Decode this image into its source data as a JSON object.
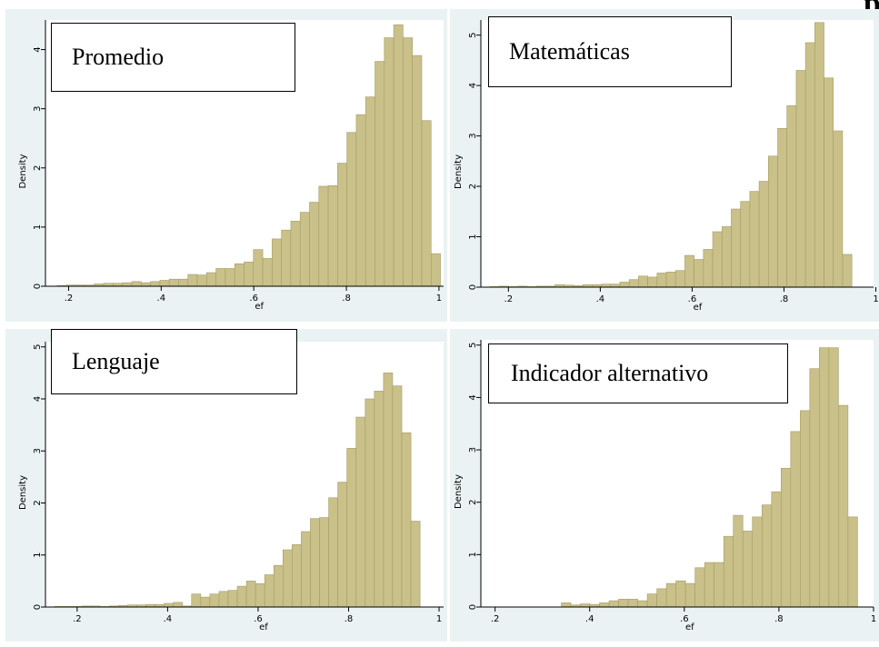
{
  "page": {
    "corner_glyph": "p"
  },
  "chart_data": [
    {
      "type": "bar",
      "title": "Promedio",
      "xlabel": "ef",
      "ylabel": "Density",
      "xlim": [
        0.15,
        1.01
      ],
      "ylim": [
        0,
        4.5
      ],
      "xticks": [
        0.2,
        0.4,
        0.6,
        0.8,
        1
      ],
      "xtick_labels": [
        ".2",
        ".4",
        ".6",
        ".8",
        "1"
      ],
      "yticks": [
        0,
        1,
        2,
        3,
        4
      ],
      "ytick_labels": [
        "0",
        "1",
        "2",
        "3",
        "4"
      ],
      "bin_start": 0.175,
      "bin_width": 0.0202,
      "values": [
        0.01,
        0.02,
        0.02,
        0.02,
        0.04,
        0.05,
        0.05,
        0.06,
        0.08,
        0.06,
        0.08,
        0.1,
        0.12,
        0.12,
        0.2,
        0.19,
        0.23,
        0.3,
        0.3,
        0.38,
        0.41,
        0.62,
        0.47,
        0.8,
        0.95,
        1.1,
        1.25,
        1.42,
        1.69,
        1.7,
        2.08,
        2.6,
        2.9,
        3.2,
        3.8,
        4.2,
        4.42,
        4.2,
        3.9,
        2.8,
        0.55
      ],
      "bar_color": "#c9c08a"
    },
    {
      "type": "bar",
      "title": "Matemáticas",
      "xlabel": "ef",
      "ylabel": "Density",
      "xlim": [
        0.14,
        0.995
      ],
      "ylim": [
        0,
        5.3
      ],
      "xticks": [
        0.2,
        0.4,
        0.6,
        0.8,
        1
      ],
      "xtick_labels": [
        ".2",
        ".4",
        ".6",
        ".8",
        "1"
      ],
      "yticks": [
        0,
        1,
        2,
        3,
        4,
        5
      ],
      "ytick_labels": [
        "0",
        "1",
        "2",
        "3",
        "4",
        "5"
      ],
      "bin_start": 0.16,
      "bin_width": 0.0202,
      "values": [
        0.01,
        0.02,
        0.01,
        0.02,
        0.01,
        0.02,
        0.02,
        0.05,
        0.04,
        0.03,
        0.05,
        0.05,
        0.06,
        0.06,
        0.1,
        0.15,
        0.22,
        0.2,
        0.28,
        0.3,
        0.33,
        0.63,
        0.55,
        0.75,
        1.1,
        1.2,
        1.55,
        1.7,
        1.9,
        2.1,
        2.6,
        3.15,
        3.6,
        4.3,
        4.85,
        5.25,
        4.15,
        3.1,
        0.65
      ],
      "bar_color": "#c9c08a"
    },
    {
      "type": "bar",
      "title": "Lenguaje",
      "xlabel": "ef",
      "ylabel": "Density",
      "xlim": [
        0.13,
        1.01
      ],
      "ylim": [
        0,
        5.1
      ],
      "xticks": [
        0.2,
        0.4,
        0.6,
        0.8,
        1
      ],
      "xtick_labels": [
        ".2",
        ".4",
        ".6",
        ".8",
        "1"
      ],
      "yticks": [
        0,
        1,
        2,
        3,
        4,
        5
      ],
      "ytick_labels": [
        "0",
        "1",
        "2",
        "3",
        "4",
        "5"
      ],
      "bin_start": 0.15,
      "bin_width": 0.0202,
      "values": [
        0.01,
        0.01,
        0.01,
        0.02,
        0.02,
        0.01,
        0.02,
        0.03,
        0.04,
        0.04,
        0.05,
        0.05,
        0.07,
        0.09,
        0.02,
        0.25,
        0.19,
        0.25,
        0.3,
        0.32,
        0.4,
        0.5,
        0.45,
        0.62,
        0.8,
        1.1,
        1.2,
        1.45,
        1.7,
        1.72,
        2.1,
        2.4,
        3.05,
        3.65,
        4.0,
        4.15,
        4.5,
        4.25,
        3.35,
        1.65
      ],
      "bar_color": "#c9c08a"
    },
    {
      "type": "bar",
      "title": "Indicador alternativo",
      "xlabel": "ef",
      "ylabel": "Density",
      "xlim": [
        0.17,
        1.0
      ],
      "ylim": [
        0,
        5.1
      ],
      "xticks": [
        0.2,
        0.4,
        0.6,
        0.8,
        1
      ],
      "xtick_labels": [
        ".2",
        ".4",
        ".6",
        ".8",
        "1"
      ],
      "yticks": [
        0,
        1,
        2,
        3,
        4,
        5
      ],
      "ytick_labels": [
        "0",
        "1",
        "2",
        "3",
        "4",
        "5"
      ],
      "bin_start": 0.34,
      "bin_width": 0.0202,
      "values": [
        0.08,
        0.04,
        0.06,
        0.05,
        0.08,
        0.12,
        0.15,
        0.15,
        0.12,
        0.25,
        0.35,
        0.45,
        0.5,
        0.45,
        0.75,
        0.85,
        0.85,
        1.35,
        1.75,
        1.45,
        1.72,
        1.95,
        2.2,
        2.65,
        3.35,
        3.75,
        4.55,
        4.95,
        4.95,
        3.85,
        1.72
      ],
      "bar_color": "#c9c08a"
    }
  ]
}
